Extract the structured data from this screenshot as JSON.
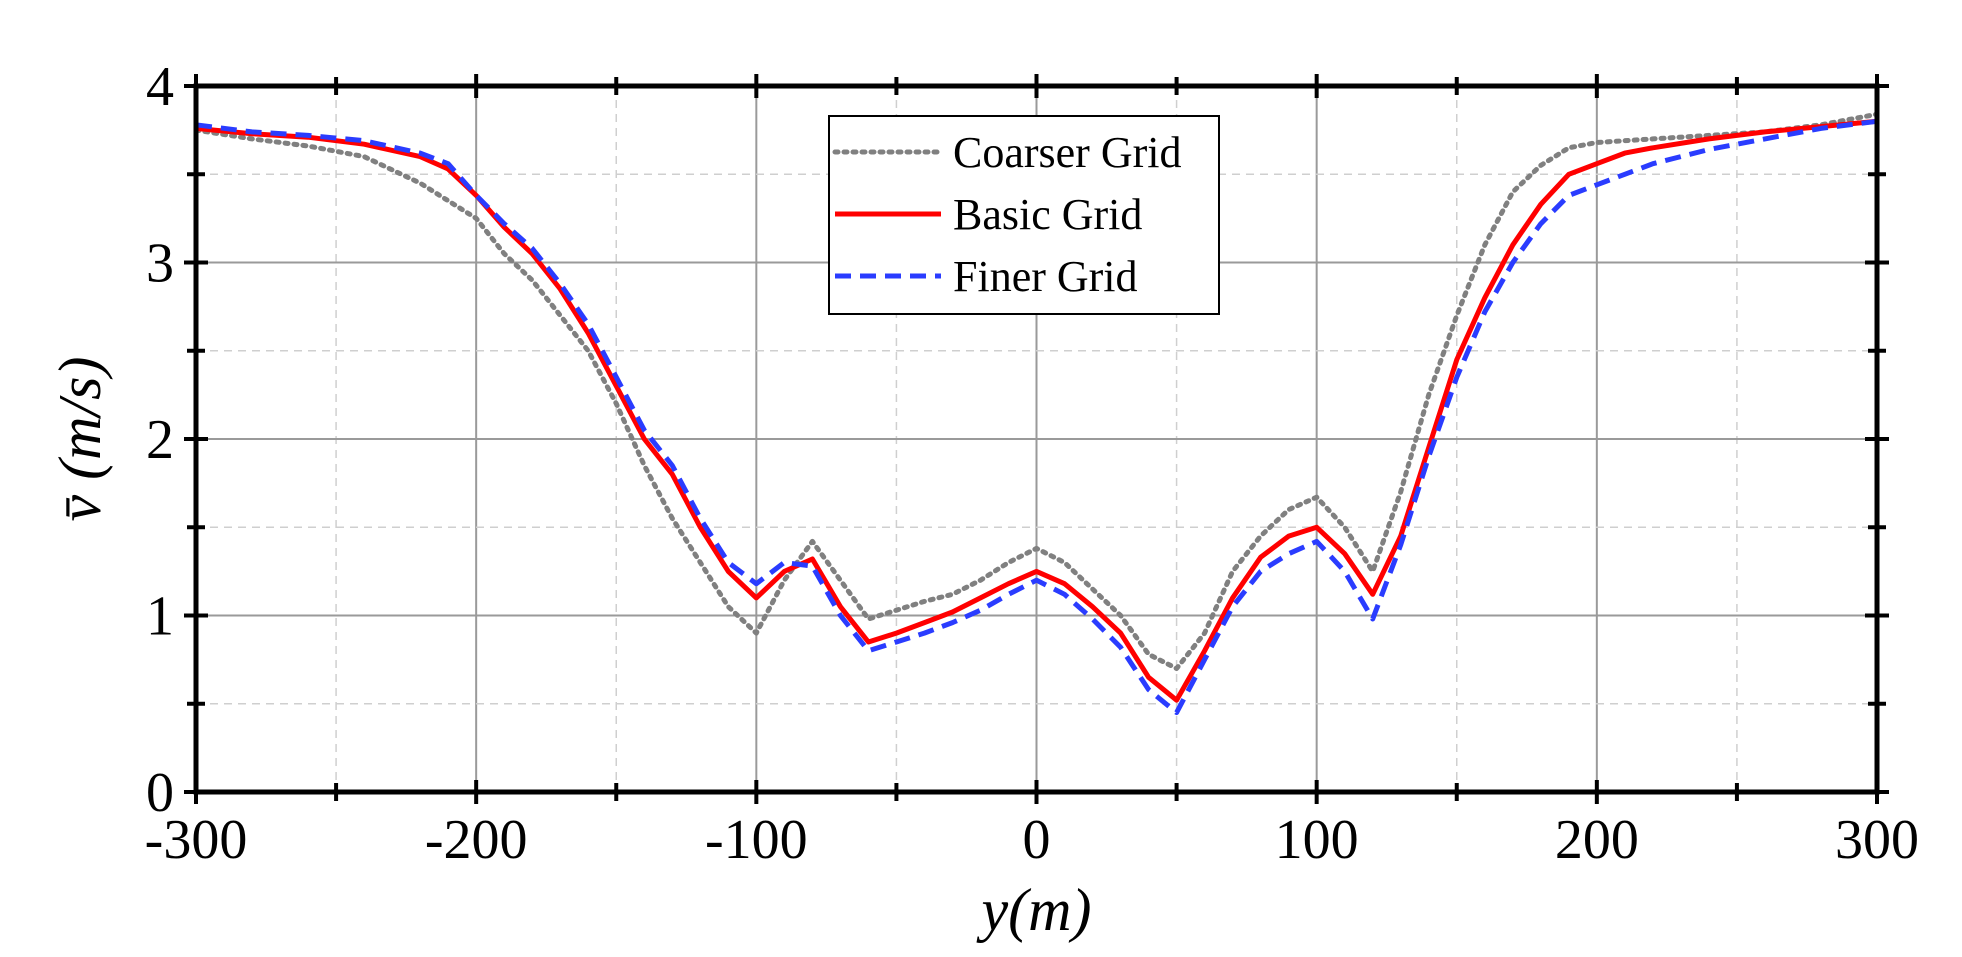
{
  "chart_data": {
    "type": "line",
    "title": "",
    "xlabel": "y(m)",
    "ylabel": "v̄ (m/s)",
    "xlim": [
      -300,
      300
    ],
    "ylim": [
      0,
      4
    ],
    "xticks": [
      -300,
      -200,
      -100,
      0,
      100,
      200,
      300
    ],
    "yticks": [
      0,
      1,
      2,
      3,
      4
    ],
    "xtick_labels": [
      "-300",
      "-200",
      "-100",
      "0",
      "100",
      "200",
      "300"
    ],
    "ytick_labels": [
      "0",
      "1",
      "2",
      "3",
      "4"
    ],
    "grid": true,
    "legend_position": "top-center",
    "series": [
      {
        "name": "Coarser Grid",
        "color": "#808080",
        "style": "dotted",
        "x": [
          -300,
          -280,
          -260,
          -240,
          -220,
          -200,
          -190,
          -180,
          -170,
          -160,
          -150,
          -140,
          -130,
          -120,
          -110,
          -100,
          -90,
          -80,
          -70,
          -60,
          -50,
          -40,
          -30,
          -20,
          -10,
          0,
          10,
          20,
          30,
          40,
          50,
          60,
          70,
          80,
          90,
          100,
          110,
          120,
          130,
          140,
          150,
          160,
          170,
          180,
          190,
          200,
          220,
          240,
          260,
          280,
          300
        ],
        "y": [
          3.75,
          3.7,
          3.66,
          3.6,
          3.45,
          3.25,
          3.05,
          2.9,
          2.7,
          2.5,
          2.2,
          1.85,
          1.55,
          1.3,
          1.05,
          0.9,
          1.2,
          1.42,
          1.2,
          0.98,
          1.03,
          1.08,
          1.12,
          1.2,
          1.3,
          1.38,
          1.3,
          1.15,
          1.0,
          0.78,
          0.7,
          0.9,
          1.25,
          1.45,
          1.6,
          1.67,
          1.5,
          1.25,
          1.7,
          2.25,
          2.7,
          3.1,
          3.4,
          3.55,
          3.65,
          3.68,
          3.7,
          3.72,
          3.74,
          3.78,
          3.84
        ]
      },
      {
        "name": "Basic Grid",
        "color": "#ff0000",
        "style": "solid",
        "x": [
          -300,
          -280,
          -260,
          -240,
          -220,
          -210,
          -200,
          -190,
          -180,
          -170,
          -160,
          -150,
          -140,
          -130,
          -120,
          -110,
          -100,
          -90,
          -80,
          -70,
          -60,
          -50,
          -40,
          -30,
          -20,
          -10,
          0,
          10,
          20,
          30,
          40,
          50,
          60,
          70,
          80,
          90,
          100,
          110,
          120,
          130,
          140,
          150,
          160,
          170,
          180,
          190,
          200,
          210,
          220,
          240,
          260,
          280,
          300
        ],
        "y": [
          3.76,
          3.73,
          3.71,
          3.67,
          3.6,
          3.53,
          3.38,
          3.2,
          3.05,
          2.85,
          2.6,
          2.3,
          2.0,
          1.8,
          1.5,
          1.25,
          1.1,
          1.25,
          1.32,
          1.05,
          0.85,
          0.9,
          0.96,
          1.02,
          1.1,
          1.18,
          1.25,
          1.18,
          1.05,
          0.9,
          0.65,
          0.52,
          0.8,
          1.1,
          1.33,
          1.45,
          1.5,
          1.35,
          1.12,
          1.45,
          1.95,
          2.45,
          2.8,
          3.1,
          3.33,
          3.5,
          3.56,
          3.62,
          3.65,
          3.7,
          3.74,
          3.77,
          3.8
        ]
      },
      {
        "name": "Finer Grid",
        "color": "#2a3cff",
        "style": "dashed",
        "x": [
          -300,
          -280,
          -260,
          -240,
          -220,
          -210,
          -200,
          -190,
          -180,
          -170,
          -160,
          -150,
          -140,
          -130,
          -120,
          -110,
          -100,
          -90,
          -80,
          -70,
          -60,
          -50,
          -40,
          -30,
          -20,
          -10,
          0,
          10,
          20,
          30,
          40,
          50,
          60,
          70,
          80,
          90,
          100,
          110,
          120,
          130,
          140,
          150,
          160,
          170,
          180,
          190,
          200,
          210,
          220,
          240,
          260,
          280,
          300
        ],
        "y": [
          3.78,
          3.74,
          3.72,
          3.69,
          3.62,
          3.56,
          3.38,
          3.22,
          3.08,
          2.88,
          2.65,
          2.35,
          2.05,
          1.85,
          1.55,
          1.3,
          1.18,
          1.3,
          1.28,
          1.0,
          0.8,
          0.85,
          0.9,
          0.96,
          1.03,
          1.12,
          1.2,
          1.12,
          0.98,
          0.82,
          0.58,
          0.45,
          0.75,
          1.05,
          1.25,
          1.35,
          1.42,
          1.25,
          0.98,
          1.4,
          1.9,
          2.35,
          2.72,
          3.0,
          3.22,
          3.38,
          3.44,
          3.5,
          3.56,
          3.64,
          3.7,
          3.76,
          3.8
        ]
      }
    ]
  }
}
